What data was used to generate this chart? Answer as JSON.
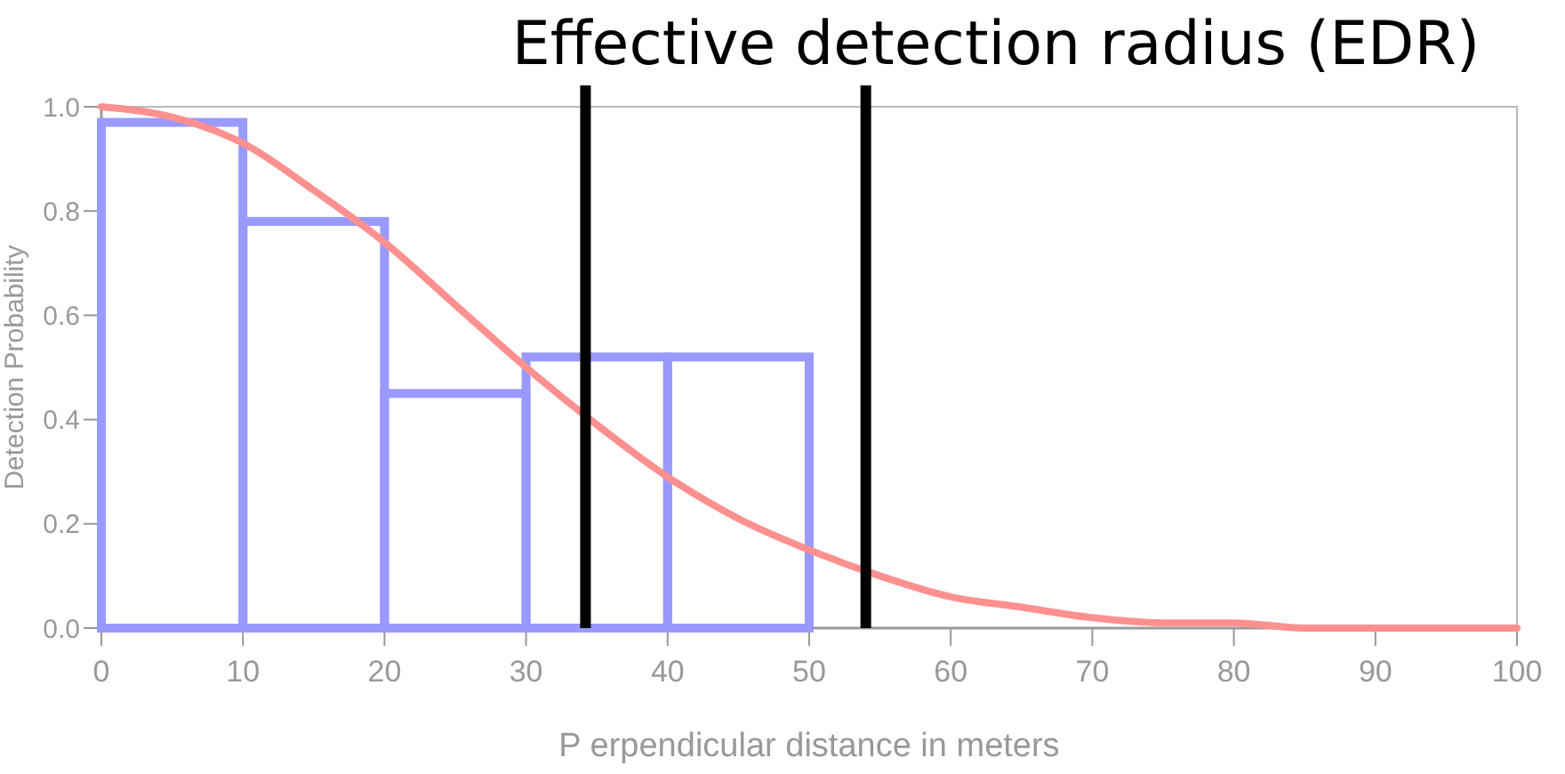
{
  "chart_data": {
    "type": "histogram",
    "title": "Effective detection radius (EDR)",
    "xlabel": "P erpendicular distance in meters",
    "ylabel": "Detection Probability",
    "series": [
      {
        "color": "#9999ff",
        "bins": [
          0,
          10,
          20,
          30,
          40,
          50,
          60,
          70,
          80,
          90,
          100
        ],
        "values": [
          0.97,
          0.78,
          0.45,
          0.52,
          0.52,
          0,
          0,
          0,
          0,
          0
        ]
      },
      {
        "type": "line",
        "color": "#ff9090",
        "x": [
          0,
          5,
          10,
          15,
          20,
          25,
          30,
          35,
          40,
          45,
          50,
          55,
          60,
          65,
          70,
          75,
          80,
          85,
          90,
          95,
          100
        ],
        "values": [
          1,
          0.98,
          0.93,
          0.84,
          0.74,
          0.62,
          0.5,
          0.39,
          0.29,
          0.21,
          0.15,
          0.1,
          0.06,
          0.04,
          0.02,
          0.01,
          0.01,
          0,
          0,
          0,
          0
        ]
      }
    ],
    "ref_lines": [
      {
        "axis": "x",
        "value": 34.2,
        "color": "#000000"
      },
      {
        "axis": "x",
        "value": 54,
        "color": "#000000"
      }
    ],
    "xlim": [
      0,
      100
    ],
    "xticks": [
      0,
      10,
      20,
      30,
      40,
      50,
      60,
      70,
      80,
      90,
      100
    ],
    "ylim": [
      0,
      1
    ],
    "yticks": [
      {
        "value": 0,
        "label": "0.0"
      },
      {
        "value": 0.2,
        "label": "0.2"
      },
      {
        "value": 0.4,
        "label": "0.4"
      },
      {
        "value": 0.6,
        "label": "0.6"
      },
      {
        "value": 0.8,
        "label": "0.8"
      },
      {
        "value": 1,
        "label": "1.0"
      }
    ],
    "grid": false
  }
}
